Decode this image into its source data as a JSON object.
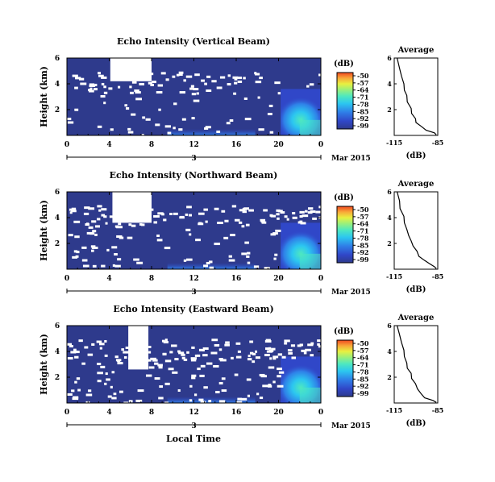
{
  "figure": {
    "xlabel_bottom": "Local Time",
    "date_label": "Mar 2015",
    "day_label": "3",
    "colorbar_unit": "(dB)",
    "colorbar_ticks": [
      "-50",
      "-57",
      "-64",
      "-71",
      "-78",
      "-85",
      "-92",
      "-99"
    ],
    "colormap": [
      "#2e3a8c",
      "#3047c8",
      "#2f80e8",
      "#2cc6f0",
      "#4ee8c0",
      "#9ef078",
      "#e8f040",
      "#f8a838",
      "#f04820"
    ]
  },
  "chart_data": [
    {
      "type": "heatmap",
      "title": "Echo Intensity (Vertical Beam)",
      "ylabel": "Height (km)",
      "xticks": [
        "0",
        "4",
        "8",
        "12",
        "16",
        "20",
        "0"
      ],
      "yticks": [
        "6",
        "4",
        "2"
      ],
      "xlim": [
        0,
        24
      ],
      "ylim": [
        0,
        6
      ],
      "clim": [
        -99,
        -50
      ],
      "profile": {
        "title": "Average",
        "xlabel": "(dB)",
        "xticks": [
          "-115",
          "-85"
        ],
        "yticks": [
          "6",
          "4",
          "2"
        ],
        "xlim": [
          -115,
          -85
        ],
        "ylim": [
          0,
          6
        ],
        "x": [
          -113,
          -112,
          -110,
          -109,
          -108,
          -107,
          -106,
          -104,
          -103,
          -101,
          -100,
          -97,
          -93,
          -88,
          -86
        ],
        "y": [
          6.0,
          5.2,
          4.6,
          4.0,
          3.5,
          3.1,
          2.6,
          2.1,
          1.7,
          1.3,
          1.0,
          0.7,
          0.4,
          0.2,
          0.05
        ]
      }
    },
    {
      "type": "heatmap",
      "title": "Echo Intensity (Northward Beam)",
      "ylabel": "Height (km)",
      "xticks": [
        "0",
        "4",
        "8",
        "12",
        "16",
        "20",
        "0"
      ],
      "yticks": [
        "6",
        "4",
        "2"
      ],
      "xlim": [
        0,
        24
      ],
      "ylim": [
        0,
        6
      ],
      "clim": [
        -99,
        -50
      ],
      "profile": {
        "title": "Average",
        "xlabel": "(dB)",
        "xticks": [
          "-115",
          "-85"
        ],
        "yticks": [
          "6",
          "4",
          "2"
        ],
        "xlim": [
          -115,
          -85
        ],
        "ylim": [
          0,
          6
        ],
        "x": [
          -113,
          -112,
          -111,
          -109,
          -108,
          -107,
          -105,
          -104,
          -102,
          -100,
          -98,
          -95,
          -91,
          -88,
          -86
        ],
        "y": [
          6.0,
          5.3,
          4.7,
          4.1,
          3.6,
          3.1,
          2.6,
          2.2,
          1.8,
          1.4,
          1.0,
          0.7,
          0.45,
          0.2,
          0.05
        ]
      }
    },
    {
      "type": "heatmap",
      "title": "Echo Intensity (Eastward Beam)",
      "ylabel": "Height (km)",
      "xticks": [
        "0",
        "4",
        "8",
        "12",
        "16",
        "20",
        "0"
      ],
      "yticks": [
        "6",
        "4",
        "2"
      ],
      "xlim": [
        0,
        24
      ],
      "ylim": [
        0,
        6
      ],
      "clim": [
        -99,
        -50
      ],
      "profile": {
        "title": "Average",
        "xlabel": "(dB)",
        "xticks": [
          "-115",
          "-85"
        ],
        "yticks": [
          "6",
          "4",
          "2"
        ],
        "xlim": [
          -115,
          -85
        ],
        "ylim": [
          0,
          6
        ],
        "x": [
          -113,
          -112,
          -110,
          -109,
          -108,
          -107,
          -106,
          -104,
          -103,
          -101,
          -99,
          -97,
          -94,
          -89,
          -86
        ],
        "y": [
          6.0,
          5.3,
          4.7,
          4.1,
          3.6,
          3.1,
          2.7,
          2.3,
          1.9,
          1.5,
          1.1,
          0.7,
          0.4,
          0.2,
          0.05
        ]
      }
    }
  ]
}
